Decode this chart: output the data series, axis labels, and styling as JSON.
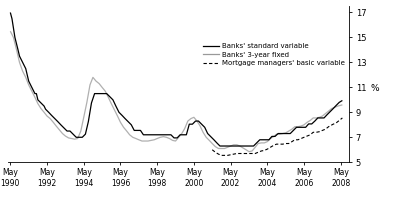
{
  "background_color": "#ffffff",
  "ylabel": "%",
  "ylim": [
    5,
    17.5
  ],
  "yticks": [
    5,
    7,
    9,
    11,
    13,
    15,
    17
  ],
  "xlim": [
    1990.2,
    2008.8
  ],
  "standard_variable": {
    "label": "Banks' standard variable",
    "color": "#000000",
    "lw": 0.9,
    "dates": [
      1990.33,
      1990.42,
      1990.58,
      1990.75,
      1990.83,
      1991.0,
      1991.17,
      1991.33,
      1991.5,
      1991.67,
      1991.75,
      1991.83,
      1992.0,
      1992.17,
      1992.25,
      1992.42,
      1992.58,
      1992.75,
      1992.92,
      1993.08,
      1993.25,
      1993.42,
      1993.58,
      1993.75,
      1993.92,
      1994.08,
      1994.25,
      1994.42,
      1994.58,
      1994.75,
      1994.92,
      1995.08,
      1995.25,
      1995.42,
      1995.58,
      1995.75,
      1995.92,
      1996.08,
      1996.25,
      1996.42,
      1996.58,
      1996.75,
      1996.92,
      1997.08,
      1997.25,
      1997.42,
      1997.58,
      1997.75,
      1997.92,
      1998.08,
      1998.25,
      1998.42,
      1998.58,
      1998.75,
      1998.92,
      1999.08,
      1999.25,
      1999.42,
      1999.58,
      1999.75,
      1999.92,
      2000.08,
      2000.25,
      2000.42,
      2000.58,
      2000.75,
      2000.92,
      2001.08,
      2001.25,
      2001.42,
      2001.58,
      2001.75,
      2001.92,
      2002.08,
      2002.25,
      2002.42,
      2002.58,
      2002.75,
      2002.92,
      2003.08,
      2003.25,
      2003.42,
      2003.58,
      2003.75,
      2003.92,
      2004.08,
      2004.25,
      2004.42,
      2004.58,
      2004.75,
      2004.92,
      2005.08,
      2005.25,
      2005.42,
      2005.58,
      2005.75,
      2005.92,
      2006.08,
      2006.25,
      2006.42,
      2006.58,
      2006.75,
      2006.92,
      2007.08,
      2007.25,
      2007.42,
      2007.58,
      2007.75,
      2007.92,
      2008.08,
      2008.25,
      2008.42
    ],
    "values": [
      17.0,
      16.5,
      15.0,
      14.0,
      13.5,
      13.0,
      12.5,
      11.5,
      11.0,
      10.5,
      10.5,
      10.0,
      9.75,
      9.5,
      9.25,
      9.0,
      8.75,
      8.5,
      8.25,
      8.0,
      7.75,
      7.5,
      7.5,
      7.25,
      7.0,
      7.0,
      7.0,
      7.25,
      8.25,
      9.75,
      10.5,
      10.5,
      10.5,
      10.5,
      10.5,
      10.25,
      10.0,
      9.5,
      9.0,
      8.75,
      8.5,
      8.25,
      8.0,
      7.55,
      7.55,
      7.55,
      7.2,
      7.2,
      7.2,
      7.2,
      7.2,
      7.2,
      7.2,
      7.2,
      7.2,
      7.2,
      6.95,
      6.95,
      7.2,
      7.2,
      7.2,
      8.05,
      8.05,
      8.3,
      8.3,
      8.05,
      7.8,
      7.3,
      7.05,
      6.8,
      6.55,
      6.3,
      6.3,
      6.3,
      6.3,
      6.3,
      6.3,
      6.3,
      6.3,
      6.3,
      6.3,
      6.3,
      6.3,
      6.55,
      6.8,
      6.8,
      6.8,
      6.8,
      7.07,
      7.07,
      7.3,
      7.3,
      7.3,
      7.3,
      7.3,
      7.55,
      7.8,
      7.8,
      7.8,
      7.8,
      8.07,
      8.07,
      8.3,
      8.55,
      8.55,
      8.55,
      8.8,
      9.05,
      9.3,
      9.55,
      9.8,
      9.95
    ]
  },
  "fixed_3yr": {
    "label": "Banks' 3-year fixed",
    "color": "#b0b0b0",
    "lw": 0.9,
    "dates": [
      1990.33,
      1990.5,
      1990.67,
      1990.83,
      1991.0,
      1991.17,
      1991.33,
      1991.5,
      1991.67,
      1991.83,
      1992.0,
      1992.17,
      1992.33,
      1992.5,
      1992.67,
      1992.83,
      1993.0,
      1993.17,
      1993.33,
      1993.5,
      1993.67,
      1993.83,
      1994.0,
      1994.17,
      1994.33,
      1994.5,
      1994.67,
      1994.83,
      1995.0,
      1995.17,
      1995.33,
      1995.5,
      1995.67,
      1995.83,
      1996.0,
      1996.17,
      1996.33,
      1996.5,
      1996.67,
      1996.83,
      1997.0,
      1997.17,
      1997.33,
      1997.5,
      1997.67,
      1997.83,
      1998.0,
      1998.17,
      1998.33,
      1998.5,
      1998.67,
      1998.83,
      1999.0,
      1999.17,
      1999.33,
      1999.5,
      1999.67,
      1999.83,
      2000.0,
      2000.17,
      2000.33,
      2000.5,
      2000.67,
      2000.83,
      2001.0,
      2001.17,
      2001.33,
      2001.5,
      2001.67,
      2001.83,
      2002.0,
      2002.17,
      2002.33,
      2002.5,
      2002.67,
      2002.83,
      2003.0,
      2003.17,
      2003.33,
      2003.5,
      2003.67,
      2003.83,
      2004.0,
      2004.17,
      2004.33,
      2004.5,
      2004.67,
      2004.83,
      2005.0,
      2005.17,
      2005.33,
      2005.5,
      2005.67,
      2005.83,
      2006.0,
      2006.17,
      2006.33,
      2006.5,
      2006.67,
      2006.83,
      2007.0,
      2007.17,
      2007.33,
      2007.5,
      2007.67,
      2007.83,
      2008.0,
      2008.17,
      2008.42
    ],
    "values": [
      15.5,
      15.0,
      14.0,
      13.0,
      12.3,
      11.8,
      11.2,
      10.7,
      10.2,
      9.7,
      9.3,
      9.0,
      8.7,
      8.5,
      8.2,
      7.9,
      7.6,
      7.3,
      7.1,
      6.95,
      6.9,
      6.85,
      6.9,
      7.5,
      8.6,
      9.8,
      11.2,
      11.8,
      11.5,
      11.3,
      11.0,
      10.7,
      10.2,
      9.7,
      9.2,
      8.7,
      8.2,
      7.8,
      7.5,
      7.2,
      7.0,
      6.9,
      6.8,
      6.7,
      6.7,
      6.7,
      6.75,
      6.8,
      6.9,
      7.0,
      7.05,
      7.0,
      6.9,
      6.75,
      6.7,
      7.0,
      7.3,
      7.7,
      8.3,
      8.5,
      8.6,
      8.3,
      7.9,
      7.4,
      7.0,
      6.75,
      6.5,
      6.25,
      6.1,
      6.1,
      6.1,
      6.2,
      6.3,
      6.4,
      6.4,
      6.3,
      6.15,
      6.0,
      5.85,
      5.9,
      6.2,
      6.5,
      6.55,
      6.55,
      6.65,
      6.9,
      7.05,
      7.25,
      7.25,
      7.3,
      7.35,
      7.5,
      7.65,
      7.85,
      7.85,
      7.9,
      8.0,
      8.2,
      8.35,
      8.55,
      8.55,
      8.6,
      8.7,
      8.9,
      9.1,
      9.3,
      9.4,
      9.5,
      9.6
    ]
  },
  "mortgage_mgr": {
    "label": "Mortgage managers' basic variable",
    "color": "#000000",
    "lw": 0.8,
    "dates": [
      2001.33,
      2001.5,
      2001.67,
      2001.83,
      2002.0,
      2002.17,
      2002.33,
      2002.5,
      2002.67,
      2002.83,
      2003.0,
      2003.17,
      2003.33,
      2003.5,
      2003.67,
      2003.83,
      2004.0,
      2004.17,
      2004.33,
      2004.5,
      2004.67,
      2004.83,
      2005.0,
      2005.17,
      2005.33,
      2005.5,
      2005.67,
      2005.83,
      2006.0,
      2006.17,
      2006.33,
      2006.5,
      2006.67,
      2006.83,
      2007.0,
      2007.17,
      2007.33,
      2007.5,
      2007.67,
      2007.92,
      2008.08,
      2008.25,
      2008.42
    ],
    "values": [
      6.0,
      5.8,
      5.65,
      5.55,
      5.55,
      5.55,
      5.6,
      5.65,
      5.7,
      5.7,
      5.7,
      5.7,
      5.7,
      5.7,
      5.7,
      5.8,
      5.9,
      5.95,
      6.05,
      6.2,
      6.35,
      6.45,
      6.45,
      6.45,
      6.5,
      6.5,
      6.65,
      6.8,
      6.8,
      6.9,
      7.0,
      7.1,
      7.2,
      7.4,
      7.4,
      7.45,
      7.55,
      7.65,
      7.85,
      8.05,
      8.15,
      8.35,
      8.55
    ]
  },
  "xtick_years": [
    1990,
    1992,
    1994,
    1996,
    1998,
    2000,
    2002,
    2004,
    2006,
    2008
  ],
  "xtick_positions": [
    1990.33,
    1992.33,
    1994.33,
    1996.33,
    1998.33,
    2000.33,
    2002.33,
    2004.33,
    2006.33,
    2008.33
  ]
}
